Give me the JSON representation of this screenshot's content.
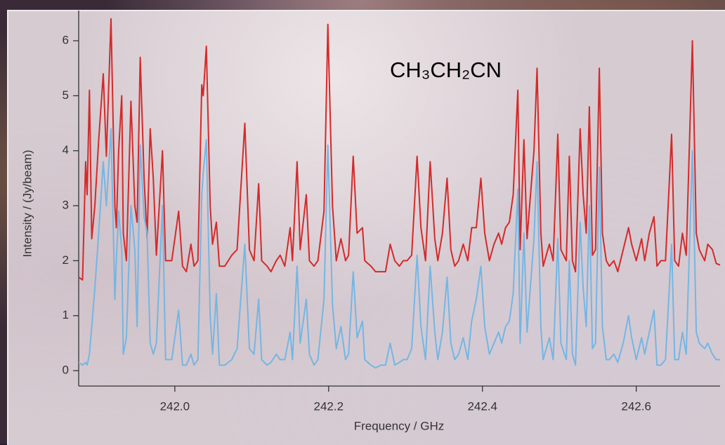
{
  "chart_data": {
    "type": "line",
    "annotation": "CH₃CH₂CN",
    "x_label": "Frequency / GHz",
    "y_label": "Intensity / (Jy/beam)",
    "xlim": [
      241.875,
      242.709
    ],
    "ylim": [
      -0.28,
      6.55
    ],
    "xticks": [
      {
        "value": 242.0,
        "label": "242.0"
      },
      242.2,
      242.4,
      242.6
    ],
    "yticks": [
      0,
      1,
      2,
      3,
      4,
      5,
      6
    ],
    "x": [
      241.875,
      241.88,
      241.884,
      241.886,
      241.889,
      241.892,
      241.896,
      241.901,
      241.907,
      241.911,
      241.917,
      241.922,
      241.924,
      241.927,
      241.931,
      241.933,
      241.937,
      241.943,
      241.948,
      241.951,
      241.955,
      241.96,
      241.964,
      241.968,
      241.972,
      241.976,
      241.984,
      241.988,
      241.996,
      242.005,
      242.01,
      242.015,
      242.021,
      242.025,
      242.03,
      242.035,
      242.037,
      242.041,
      242.046,
      242.049,
      242.054,
      242.058,
      242.065,
      242.074,
      242.081,
      242.091,
      242.097,
      242.103,
      242.109,
      242.113,
      242.12,
      242.125,
      242.132,
      242.137,
      242.143,
      242.15,
      242.153,
      242.159,
      242.163,
      242.171,
      242.175,
      242.181,
      242.186,
      242.194,
      242.199,
      242.205,
      242.21,
      242.216,
      242.222,
      242.226,
      242.232,
      242.237,
      242.244,
      242.247,
      242.255,
      242.261,
      242.268,
      242.274,
      242.28,
      242.286,
      242.292,
      242.297,
      242.302,
      242.308,
      242.315,
      242.32,
      242.326,
      242.332,
      242.338,
      242.342,
      242.348,
      242.354,
      242.359,
      242.364,
      242.369,
      242.375,
      242.381,
      242.386,
      242.392,
      242.398,
      242.403,
      242.409,
      242.415,
      242.421,
      242.425,
      242.43,
      242.435,
      242.44,
      242.446,
      242.449,
      242.454,
      242.458,
      242.467,
      242.471,
      242.476,
      242.479,
      242.487,
      242.492,
      242.498,
      242.502,
      242.509,
      242.513,
      242.517,
      242.521,
      242.527,
      242.531,
      242.535,
      242.539,
      242.543,
      242.547,
      242.552,
      242.556,
      242.561,
      242.565,
      242.571,
      242.576,
      242.583,
      242.59,
      242.594,
      242.6,
      242.607,
      242.611,
      242.617,
      242.623,
      242.627,
      242.632,
      242.638,
      242.646,
      242.65,
      242.655,
      242.66,
      242.665,
      242.673,
      242.678,
      242.682,
      242.689,
      242.693,
      242.699,
      242.704,
      242.709
    ],
    "series": [
      {
        "color": "#d42a2a",
        "values": [
          1.7,
          1.65,
          3.8,
          3.2,
          5.1,
          2.4,
          3.0,
          4.2,
          5.4,
          3.9,
          6.4,
          3.0,
          2.6,
          4.0,
          5.0,
          2.5,
          2.0,
          4.9,
          3.0,
          2.7,
          5.7,
          3.5,
          2.4,
          4.4,
          3.5,
          2.1,
          4.0,
          2.0,
          2.0,
          2.9,
          1.9,
          1.8,
          2.3,
          1.9,
          2.0,
          5.2,
          5.0,
          5.9,
          3.0,
          2.3,
          2.7,
          1.9,
          1.9,
          2.1,
          2.2,
          4.5,
          2.2,
          2.0,
          3.4,
          2.0,
          1.9,
          1.8,
          2.0,
          2.1,
          1.9,
          2.6,
          2.0,
          3.8,
          2.2,
          3.2,
          2.0,
          1.9,
          2.0,
          2.9,
          6.3,
          3.0,
          2.0,
          2.4,
          2.0,
          2.1,
          3.9,
          2.5,
          2.6,
          2.0,
          1.9,
          1.8,
          1.8,
          1.8,
          2.3,
          2.0,
          1.9,
          2.0,
          2.0,
          2.1,
          3.9,
          2.6,
          2.0,
          3.8,
          2.4,
          2.0,
          2.5,
          3.5,
          2.2,
          1.9,
          2.0,
          2.3,
          2.0,
          2.6,
          2.6,
          3.5,
          2.5,
          2.0,
          2.3,
          2.5,
          2.3,
          2.6,
          2.7,
          3.2,
          5.1,
          2.2,
          4.2,
          2.4,
          4.0,
          5.5,
          2.5,
          1.9,
          2.3,
          2.0,
          4.3,
          2.2,
          2.0,
          3.9,
          2.0,
          1.8,
          4.4,
          3.2,
          2.5,
          4.8,
          2.1,
          2.2,
          5.5,
          2.5,
          2.0,
          1.9,
          2.0,
          1.8,
          2.2,
          2.6,
          2.3,
          2.0,
          2.4,
          2.0,
          2.5,
          2.8,
          1.9,
          2.0,
          2.0,
          4.3,
          2.0,
          1.9,
          2.5,
          2.1,
          6.0,
          2.5,
          2.2,
          2.0,
          2.3,
          2.2,
          1.95,
          1.92
        ]
      },
      {
        "color": "#74b6e4",
        "values": [
          0.15,
          0.1,
          0.15,
          0.1,
          0.3,
          0.8,
          1.5,
          2.5,
          3.8,
          3.0,
          4.4,
          1.3,
          2.0,
          2.9,
          2.2,
          0.3,
          0.6,
          3.0,
          2.2,
          0.8,
          4.1,
          2.8,
          2.5,
          0.5,
          0.3,
          0.5,
          3.0,
          0.2,
          0.2,
          1.1,
          0.1,
          0.1,
          0.3,
          0.1,
          0.2,
          3.2,
          3.6,
          4.2,
          1.0,
          0.3,
          1.4,
          0.1,
          0.1,
          0.2,
          0.4,
          2.3,
          0.4,
          0.3,
          1.3,
          0.2,
          0.1,
          0.15,
          0.3,
          0.2,
          0.2,
          0.7,
          0.2,
          1.9,
          0.5,
          1.3,
          0.3,
          0.1,
          0.2,
          1.3,
          4.1,
          1.2,
          0.4,
          0.8,
          0.2,
          0.3,
          1.8,
          0.6,
          0.9,
          0.2,
          0.1,
          0.05,
          0.1,
          0.1,
          0.5,
          0.1,
          0.15,
          0.2,
          0.2,
          0.4,
          2.1,
          0.8,
          0.2,
          1.9,
          0.7,
          0.2,
          0.7,
          1.7,
          0.5,
          0.2,
          0.3,
          0.6,
          0.2,
          0.9,
          1.3,
          1.9,
          0.8,
          0.3,
          0.5,
          0.7,
          0.5,
          0.8,
          0.9,
          1.4,
          3.3,
          0.5,
          2.5,
          0.7,
          2.4,
          3.8,
          0.8,
          0.2,
          0.6,
          0.2,
          2.4,
          0.5,
          0.2,
          2.0,
          0.3,
          0.1,
          2.7,
          1.5,
          0.8,
          3.0,
          0.4,
          0.5,
          3.7,
          0.8,
          0.2,
          0.2,
          0.3,
          0.15,
          0.5,
          1.0,
          0.6,
          0.2,
          0.6,
          0.3,
          0.7,
          1.1,
          0.1,
          0.1,
          0.2,
          2.3,
          0.2,
          0.2,
          0.7,
          0.3,
          4.0,
          0.7,
          0.5,
          0.4,
          0.5,
          0.3,
          0.2,
          0.2
        ]
      }
    ]
  }
}
